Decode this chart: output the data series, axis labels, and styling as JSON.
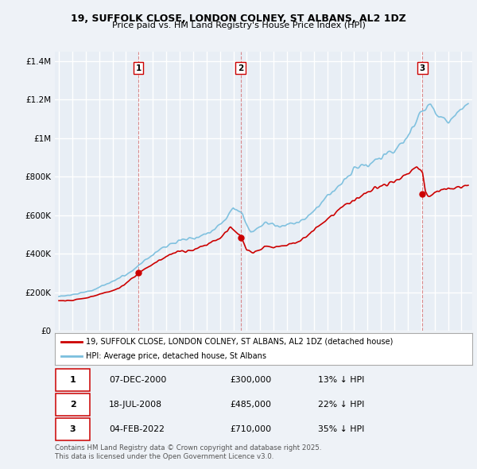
{
  "title_line1": "19, SUFFOLK CLOSE, LONDON COLNEY, ST ALBANS, AL2 1DZ",
  "title_line2": "Price paid vs. HM Land Registry's House Price Index (HPI)",
  "red_label": "19, SUFFOLK CLOSE, LONDON COLNEY, ST ALBANS, AL2 1DZ (detached house)",
  "blue_label": "HPI: Average price, detached house, St Albans",
  "red_color": "#cc0000",
  "blue_color": "#7bbfde",
  "background_color": "#eef2f7",
  "plot_bg": "#e8eef5",
  "grid_color": "#ffffff",
  "yticks": [
    0,
    200000,
    400000,
    600000,
    800000,
    1000000,
    1200000,
    1400000
  ],
  "ytick_labels": [
    "£0",
    "£200K",
    "£400K",
    "£600K",
    "£800K",
    "£1M",
    "£1.2M",
    "£1.4M"
  ],
  "xlim_start": 1994.7,
  "xlim_end": 2025.8,
  "ylim_min": 0,
  "ylim_max": 1450000,
  "transaction_dates": [
    2000.93,
    2008.54,
    2022.09
  ],
  "transaction_prices": [
    300000,
    485000,
    710000
  ],
  "transaction_labels": [
    "1",
    "2",
    "3"
  ],
  "footer_rows": [
    [
      "1",
      "07-DEC-2000",
      "£300,000",
      "13% ↓ HPI"
    ],
    [
      "2",
      "18-JUL-2008",
      "£485,000",
      "22% ↓ HPI"
    ],
    [
      "3",
      "04-FEB-2022",
      "£710,000",
      "35% ↓ HPI"
    ]
  ],
  "footer_note": "Contains HM Land Registry data © Crown copyright and database right 2025.\nThis data is licensed under the Open Government Licence v3.0."
}
